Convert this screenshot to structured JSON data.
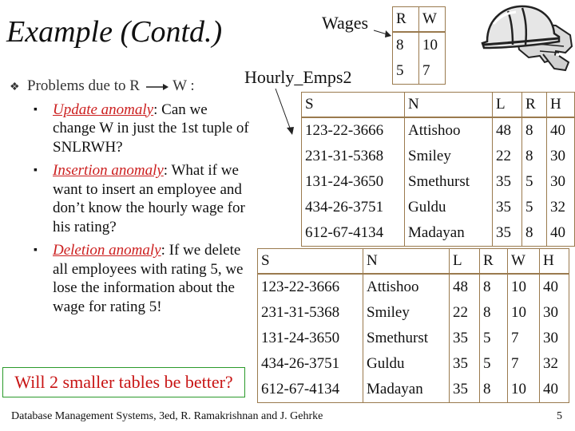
{
  "title": "Example (Contd.)",
  "wages_label": "Wages",
  "hourly_label": "Hourly_Emps2",
  "wages": {
    "headers": [
      "R",
      "W"
    ],
    "rows": [
      [
        "8",
        "10"
      ],
      [
        "5",
        "7"
      ]
    ]
  },
  "hourly_emps2": {
    "headers": [
      "S",
      "N",
      "L",
      "R",
      "H"
    ],
    "rows": [
      [
        "123-22-3666",
        "Attishoo",
        "48",
        "8",
        "40"
      ],
      [
        "231-31-5368",
        "Smiley",
        "22",
        "8",
        "30"
      ],
      [
        "131-24-3650",
        "Smethurst",
        "35",
        "5",
        "30"
      ],
      [
        "434-26-3751",
        "Guldu",
        "35",
        "5",
        "32"
      ],
      [
        "612-67-4134",
        "Madayan",
        "35",
        "8",
        "40"
      ]
    ]
  },
  "snlrwh": {
    "headers": [
      "S",
      "N",
      "L",
      "R",
      "W",
      "H"
    ],
    "rows": [
      [
        "123-22-3666",
        "Attishoo",
        "48",
        "8",
        "10",
        "40"
      ],
      [
        "231-31-5368",
        "Smiley",
        "22",
        "8",
        "10",
        "30"
      ],
      [
        "131-24-3650",
        "Smethurst",
        "35",
        "5",
        "7",
        "30"
      ],
      [
        "434-26-3751",
        "Guldu",
        "35",
        "5",
        "7",
        "32"
      ],
      [
        "612-67-4134",
        "Madayan",
        "35",
        "8",
        "10",
        "40"
      ]
    ]
  },
  "bullets": {
    "main_prefix": "Problems due to R",
    "main_suffix": " W :",
    "items": [
      {
        "term": "Update anomaly",
        "text": ":  Can we change W in just the 1st  tuple of SNLRWH?"
      },
      {
        "term": "Insertion anomaly",
        "text": ":  What if we want to insert an employee and don’t know the hourly wage for his rating?"
      },
      {
        "term": "Deletion anomaly",
        "text": ": If we delete all employees with rating 5, we lose the information about the wage for rating 5!"
      }
    ]
  },
  "callout": "Will 2 smaller tables be better?",
  "footer": "Database Management Systems, 3ed, R. Ramakrishnan and J. Gehrke",
  "page_number": "5",
  "icons": {
    "bullet": "diamond-bullet-icon",
    "sub_bullet": "square-bullet-icon",
    "arrow": "right-arrow-icon",
    "clipart": "hard-hat-gloves-icon"
  }
}
